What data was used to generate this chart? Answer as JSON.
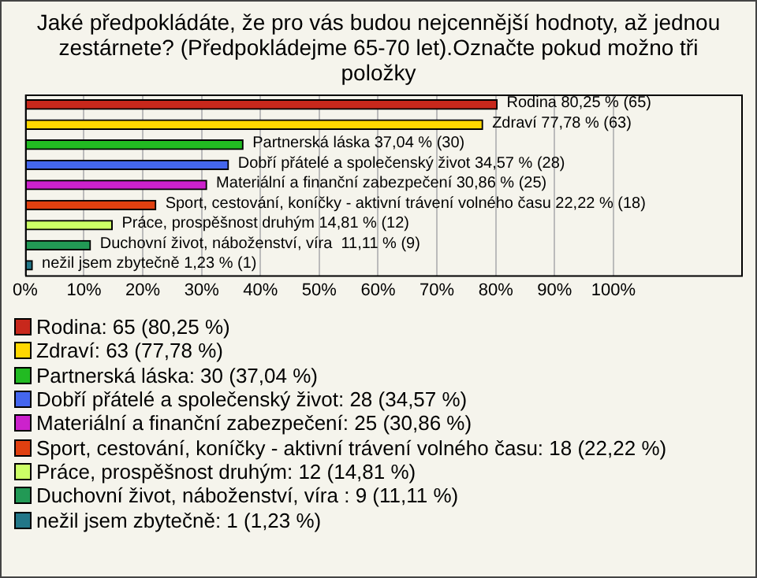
{
  "chart_data": {
    "type": "bar",
    "orientation": "horizontal",
    "title": "Jaké předpokládáte, že pro vás budou nejcennější hodnoty, až jednou zestárnete? (Předpokládejme 65-70 let).Označte pokud možno tři položky",
    "categories": [
      null,
      null,
      null,
      null,
      null,
      null,
      null,
      null,
      null
    ],
    "series": [
      {
        "name": "Rodina: 65 (80,25 %)",
        "color": "#c8281c",
        "values": [
          80.25,
          null,
          null,
          null,
          null,
          null,
          null,
          null,
          null
        ],
        "value_labels": [
          "Rodina 80,25 % (65)",
          null,
          null,
          null,
          null,
          null,
          null,
          null,
          null
        ]
      },
      {
        "name": "Zdraví: 63 (77,78 %)",
        "color": "#ffd800",
        "values": [
          null,
          77.78,
          null,
          null,
          null,
          null,
          null,
          null,
          null
        ],
        "value_labels": [
          null,
          "Zdraví 77,78 % (63)",
          null,
          null,
          null,
          null,
          null,
          null,
          null
        ]
      },
      {
        "name": "Partnerská láska: 30 (37,04 %)",
        "color": "#22bb22",
        "values": [
          null,
          null,
          37.04,
          null,
          null,
          null,
          null,
          null,
          null
        ],
        "value_labels": [
          null,
          null,
          "Partnerská láska 37,04 % (30)",
          null,
          null,
          null,
          null,
          null,
          null
        ]
      },
      {
        "name": "Dobří přátelé a společenský život: 28 (34,57 %)",
        "color": "#4466ee",
        "values": [
          null,
          null,
          null,
          34.57,
          null,
          null,
          null,
          null,
          null
        ],
        "value_labels": [
          null,
          null,
          null,
          "Dobří přátelé a společenský život 34,57 % (28)",
          null,
          null,
          null,
          null,
          null
        ]
      },
      {
        "name": "Materiální a finanční zabezpečení: 25 (30,86 %)",
        "color": "#cc22cc",
        "values": [
          null,
          null,
          null,
          null,
          30.86,
          null,
          null,
          null,
          null
        ],
        "value_labels": [
          null,
          null,
          null,
          null,
          "Materiální a finanční zabezpečení 30,86 % (25)",
          null,
          null,
          null,
          null
        ]
      },
      {
        "name": "Sport, cestování, koníčky - aktivní trávení volného času: 18 (22,22 %)",
        "color": "#e04010",
        "values": [
          null,
          null,
          null,
          null,
          null,
          22.22,
          null,
          null,
          null
        ],
        "value_labels": [
          null,
          null,
          null,
          null,
          null,
          "Sport, cestování, koníčky - aktivní trávení volného času 22,22 % (18)",
          null,
          null,
          null
        ]
      },
      {
        "name": "Práce, prospěšnost druhým: 12 (14,81 %)",
        "color": "#ccff66",
        "values": [
          null,
          null,
          null,
          null,
          null,
          null,
          14.81,
          null,
          null
        ],
        "value_labels": [
          null,
          null,
          null,
          null,
          null,
          null,
          "Práce, prospěšnost druhým 14,81 % (12)",
          null,
          null
        ]
      },
      {
        "name": "Duchovní život, náboženství, víra : 9 (11,11 %)",
        "color": "#229955",
        "values": [
          null,
          null,
          null,
          null,
          null,
          null,
          null,
          11.11,
          null
        ],
        "value_labels": [
          null,
          null,
          null,
          null,
          null,
          null,
          null,
          "Duchovní život, náboženství, víra  11,11 % (9)",
          null
        ]
      },
      {
        "name": "nežil jsem zbytečně: 1 (1,23 %)",
        "color": "#227788",
        "values": [
          null,
          null,
          null,
          null,
          null,
          null,
          null,
          null,
          1.23
        ],
        "value_labels": [
          null,
          null,
          null,
          null,
          null,
          null,
          null,
          null,
          "nežil jsem zbytečně 1,23 % (1)"
        ]
      }
    ],
    "xlim": [
      0,
      122
    ],
    "xticks": [
      {
        "value": 0,
        "label": "0%"
      },
      {
        "value": 10,
        "label": "10%"
      },
      {
        "value": 20,
        "label": "20%"
      },
      {
        "value": 30,
        "label": "30%"
      },
      {
        "value": 40,
        "label": "40%"
      },
      {
        "value": 50,
        "label": "50%"
      },
      {
        "value": 60,
        "label": "60%"
      },
      {
        "value": 70,
        "label": "70%"
      },
      {
        "value": 80,
        "label": "80%"
      },
      {
        "value": 90,
        "label": "90%"
      },
      {
        "value": 100,
        "label": "100%"
      }
    ],
    "grid": "x",
    "legend": "bottom",
    "tick_labels": "x"
  }
}
